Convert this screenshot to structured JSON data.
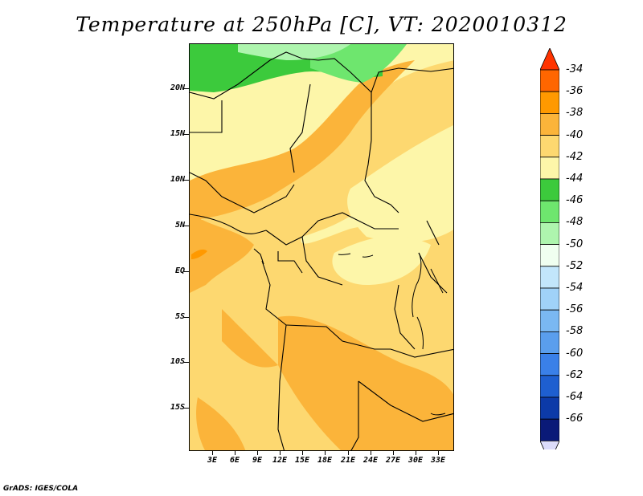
{
  "title": "Temperature at 250hPa [C], VT: 2020010312",
  "credit": "GrADS: IGES/COLA",
  "map": {
    "lat_labels": [
      "20N",
      "15N",
      "10N",
      "5N",
      "EQ",
      "5S",
      "10S",
      "15S"
    ],
    "lon_labels": [
      "3E",
      "6E",
      "9E",
      "12E",
      "15E",
      "18E",
      "21E",
      "24E",
      "27E",
      "30E",
      "33E"
    ]
  },
  "colorbar": {
    "labels": [
      "-34",
      "-36",
      "-38",
      "-40",
      "-42",
      "-44",
      "-46",
      "-48",
      "-50",
      "-52",
      "-54",
      "-56",
      "-58",
      "-60",
      "-62",
      "-64",
      "-66"
    ],
    "colors": [
      "#ff3300",
      "#ff6600",
      "#ff9900",
      "#fbb43a",
      "#fdd870",
      "#fdf6a9",
      "#3cca3c",
      "#6ee66e",
      "#aef5ae",
      "#f0fff0",
      "#c2e6fb",
      "#a0d2f8",
      "#7ab8f2",
      "#5a9eed",
      "#3a80e8",
      "#1e5fd0",
      "#0c3aa8",
      "#0a1a78",
      "#dcdcfa"
    ]
  }
}
